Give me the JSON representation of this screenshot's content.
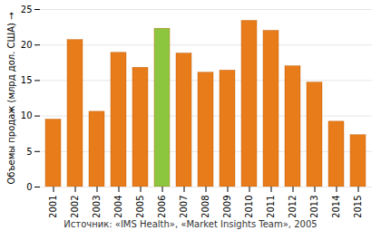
{
  "chart_data": {
    "type": "bar",
    "categories": [
      "2001",
      "2002",
      "2003",
      "2004",
      "2005",
      "2006",
      "2007",
      "2008",
      "2009",
      "2010",
      "2011",
      "2012",
      "2013",
      "2014",
      "2015"
    ],
    "values": [
      9.5,
      20.7,
      10.6,
      18.9,
      16.8,
      22.3,
      18.8,
      16.1,
      16.4,
      23.4,
      22.0,
      17.0,
      14.7,
      9.2,
      7.3
    ],
    "colors": [
      "#E87B1A",
      "#E87B1A",
      "#E87B1A",
      "#E87B1A",
      "#E87B1A",
      "#8CC63F",
      "#E87B1A",
      "#E87B1A",
      "#E87B1A",
      "#E87B1A",
      "#E87B1A",
      "#E87B1A",
      "#E87B1A",
      "#E87B1A",
      "#E87B1A"
    ],
    "ylabel": "Объемы продаж (млрд дол. США)",
    "caption": "Источник: «IMS Health», «Market Insights Team», 2005",
    "ylim": [
      0,
      25
    ],
    "yticks": [
      0,
      5,
      10,
      15,
      20,
      25
    ],
    "grid": true
  }
}
